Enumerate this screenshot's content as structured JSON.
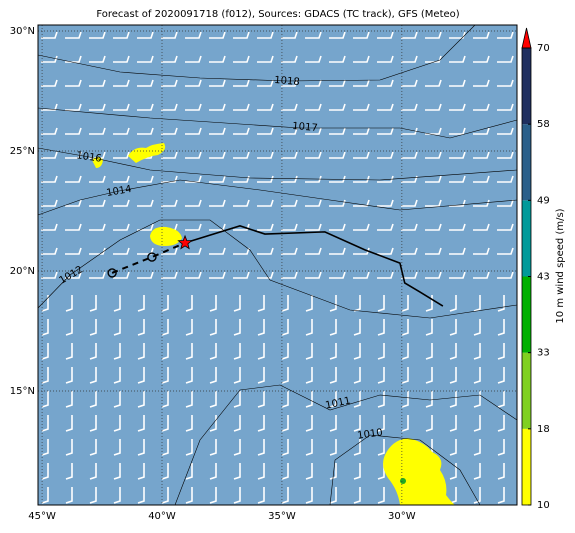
{
  "chart_data": {
    "type": "map",
    "title": "Forecast of 2020091718 (f012), Sources: GDACS (TC track), GFS (Meteo)",
    "xlim": [
      -45.17,
      -25.2
    ],
    "ylim": [
      10.25,
      30.25
    ],
    "xticks": [
      {
        "value": -45,
        "label": "45°W"
      },
      {
        "value": -40,
        "label": "40°W"
      },
      {
        "value": -35,
        "label": "35°W"
      },
      {
        "value": -30,
        "label": "30°W"
      }
    ],
    "yticks": [
      {
        "value": 30,
        "label": "30°N"
      },
      {
        "value": 25,
        "label": "25°N"
      },
      {
        "value": 20,
        "label": "20°N"
      },
      {
        "value": 15,
        "label": "15°N"
      }
    ],
    "grid": true,
    "background": "#76a5cc",
    "isobar_labels": [
      1018,
      1017,
      1016,
      1014,
      1012,
      1011,
      1010
    ],
    "series": [
      {
        "name": "Forecast track",
        "color": "#000000",
        "x": [
          -39.04,
          -36.75,
          -35.71,
          -33.21,
          -31.54,
          -30.08,
          -29.88,
          -29.25,
          -28.29
        ],
        "values": [
          21.17,
          21.88,
          21.54,
          21.63,
          20.88,
          20.33,
          19.5,
          19.13,
          18.54
        ]
      },
      {
        "name": "Past track",
        "color": "#000000",
        "x": [
          -42.08,
          -40.42,
          -39.04
        ],
        "values": [
          19.92,
          20.58,
          21.17
        ]
      }
    ],
    "colorbar": {
      "label": "10 m wind speed (m/s)",
      "ticks": [
        10,
        18,
        33,
        43,
        49,
        58,
        70
      ],
      "colors": [
        "#ffff00",
        "#80d020",
        "#00b000",
        "#009a9a",
        "#2a5f8a",
        "#1f2f5f"
      ],
      "extend_color": "#ff0000"
    }
  }
}
